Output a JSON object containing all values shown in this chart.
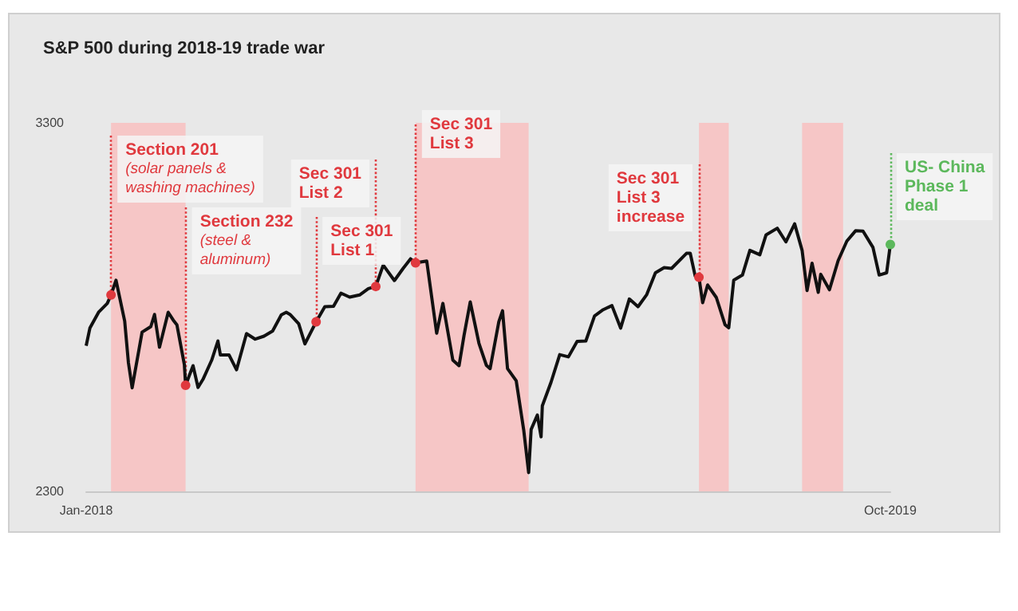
{
  "chart_data": {
    "type": "line",
    "title": "S&P 500 during 2018-19 trade war",
    "x": [
      "2018-01-02",
      "2018-01-05",
      "2018-01-12",
      "2018-01-19",
      "2018-01-22",
      "2018-01-26",
      "2018-02-02",
      "2018-02-05",
      "2018-02-08",
      "2018-02-16",
      "2018-02-23",
      "2018-02-26",
      "2018-03-02",
      "2018-03-09",
      "2018-03-13",
      "2018-03-16",
      "2018-03-22",
      "2018-03-23",
      "2018-03-29",
      "2018-04-02",
      "2018-04-06",
      "2018-04-13",
      "2018-04-18",
      "2018-04-20",
      "2018-04-27",
      "2018-05-03",
      "2018-05-11",
      "2018-05-18",
      "2018-05-25",
      "2018-06-01",
      "2018-06-08",
      "2018-06-12",
      "2018-06-15",
      "2018-06-22",
      "2018-06-27",
      "2018-07-06",
      "2018-07-13",
      "2018-07-20",
      "2018-07-26",
      "2018-08-02",
      "2018-08-10",
      "2018-08-17",
      "2018-08-23",
      "2018-08-29",
      "2018-09-07",
      "2018-09-14",
      "2018-09-20",
      "2018-09-24",
      "2018-10-03",
      "2018-10-11",
      "2018-10-16",
      "2018-10-24",
      "2018-10-29",
      "2018-11-02",
      "2018-11-07",
      "2018-11-14",
      "2018-11-20",
      "2018-11-23",
      "2018-11-30",
      "2018-12-03",
      "2018-12-07",
      "2018-12-14",
      "2018-12-20",
      "2018-12-24",
      "2018-12-26",
      "2018-12-31",
      "2019-01-03",
      "2019-01-04",
      "2019-01-11",
      "2019-01-18",
      "2019-01-25",
      "2019-02-01",
      "2019-02-08",
      "2019-02-15",
      "2019-02-22",
      "2019-03-01",
      "2019-03-08",
      "2019-03-15",
      "2019-03-22",
      "2019-03-29",
      "2019-04-05",
      "2019-04-12",
      "2019-04-18",
      "2019-04-30",
      "2019-05-03",
      "2019-05-07",
      "2019-05-10",
      "2019-05-13",
      "2019-05-17",
      "2019-05-24",
      "2019-05-31",
      "2019-06-03",
      "2019-06-07",
      "2019-06-14",
      "2019-06-20",
      "2019-06-28",
      "2019-07-03",
      "2019-07-12",
      "2019-07-19",
      "2019-07-26",
      "2019-08-01",
      "2019-08-05",
      "2019-08-09",
      "2019-08-14",
      "2019-08-16",
      "2019-08-23",
      "2019-08-30",
      "2019-09-06",
      "2019-09-13",
      "2019-09-19",
      "2019-09-27",
      "2019-10-02",
      "2019-10-08",
      "2019-10-11"
    ],
    "series": [
      {
        "color": "#111111",
        "values": [
          2695,
          2743,
          2786,
          2810,
          2833,
          2873,
          2762,
          2649,
          2581,
          2732,
          2747,
          2780,
          2691,
          2786,
          2765,
          2752,
          2644,
          2588,
          2641,
          2582,
          2604,
          2656,
          2708,
          2670,
          2670,
          2630,
          2728,
          2713,
          2721,
          2735,
          2779,
          2786,
          2780,
          2755,
          2700,
          2760,
          2801,
          2802,
          2838,
          2827,
          2833,
          2850,
          2856,
          2914,
          2872,
          2905,
          2931,
          2920,
          2925,
          2729,
          2810,
          2656,
          2641,
          2723,
          2814,
          2702,
          2642,
          2633,
          2760,
          2790,
          2633,
          2600,
          2467,
          2351,
          2468,
          2507,
          2448,
          2532,
          2596,
          2671,
          2665,
          2707,
          2708,
          2776,
          2793,
          2804,
          2743,
          2822,
          2801,
          2834,
          2893,
          2907,
          2905,
          2946,
          2946,
          2884,
          2881,
          2812,
          2860,
          2826,
          2752,
          2744,
          2873,
          2887,
          2954,
          2942,
          2996,
          3014,
          2977,
          3026,
          2954,
          2845,
          2919,
          2840,
          2889,
          2847,
          2926,
          2979,
          3007,
          3006,
          2962,
          2887,
          2893,
          2970
        ]
      }
    ],
    "xlim": [
      "2018-01-02",
      "2019-10-11"
    ],
    "xticks": [
      {
        "value": "2018-01-02",
        "label": "Jan-2018"
      },
      {
        "value": "2019-10-11",
        "label": "Oct-2019"
      }
    ],
    "ylim": [
      2300,
      3300
    ],
    "yticks": [
      2300,
      3300
    ],
    "grid": false,
    "marker": "none",
    "line_style": "solid",
    "ref_lines": [
      {
        "axis": "x",
        "value": "2018-01-22",
        "label": "Section 201\n(solar panels &\nwashing machines)",
        "color": "#e0393e",
        "line_style": "dotted"
      },
      {
        "axis": "x",
        "value": "2018-03-23",
        "label": "Section 232\n(steel &\naluminum)",
        "color": "#e0393e",
        "line_style": "dotted"
      },
      {
        "axis": "x",
        "value": "2018-07-06",
        "label": "Sec 301\nList 1",
        "color": "#e0393e",
        "line_style": "dotted"
      },
      {
        "axis": "x",
        "value": "2018-08-23",
        "label": "Sec 301\nList 2",
        "color": "#e0393e",
        "line_style": "dotted"
      },
      {
        "axis": "x",
        "value": "2018-09-24",
        "label": "Sec 301\nList 3",
        "color": "#e0393e",
        "line_style": "dotted"
      },
      {
        "axis": "x",
        "value": "2019-05-10",
        "label": "Sec 301\nList 3\nincrease",
        "color": "#e0393e",
        "line_style": "dotted"
      },
      {
        "axis": "x",
        "value": "2019-10-11",
        "label": "US- China\nPhase 1\ndeal",
        "color": "#5cb85c",
        "line_style": "dotted"
      }
    ],
    "bands": [
      {
        "axis": "x",
        "from": "2018-01-22",
        "to": "2018-03-23",
        "color": "#f6c6c6"
      },
      {
        "axis": "x",
        "from": "2018-09-24",
        "to": "2018-12-24",
        "color": "#f6c6c6"
      },
      {
        "axis": "x",
        "from": "2019-05-10",
        "to": "2019-06-03",
        "color": "#f6c6c6"
      },
      {
        "axis": "x",
        "from": "2019-08-01",
        "to": "2019-09-03",
        "color": "#f6c6c6"
      }
    ]
  }
}
